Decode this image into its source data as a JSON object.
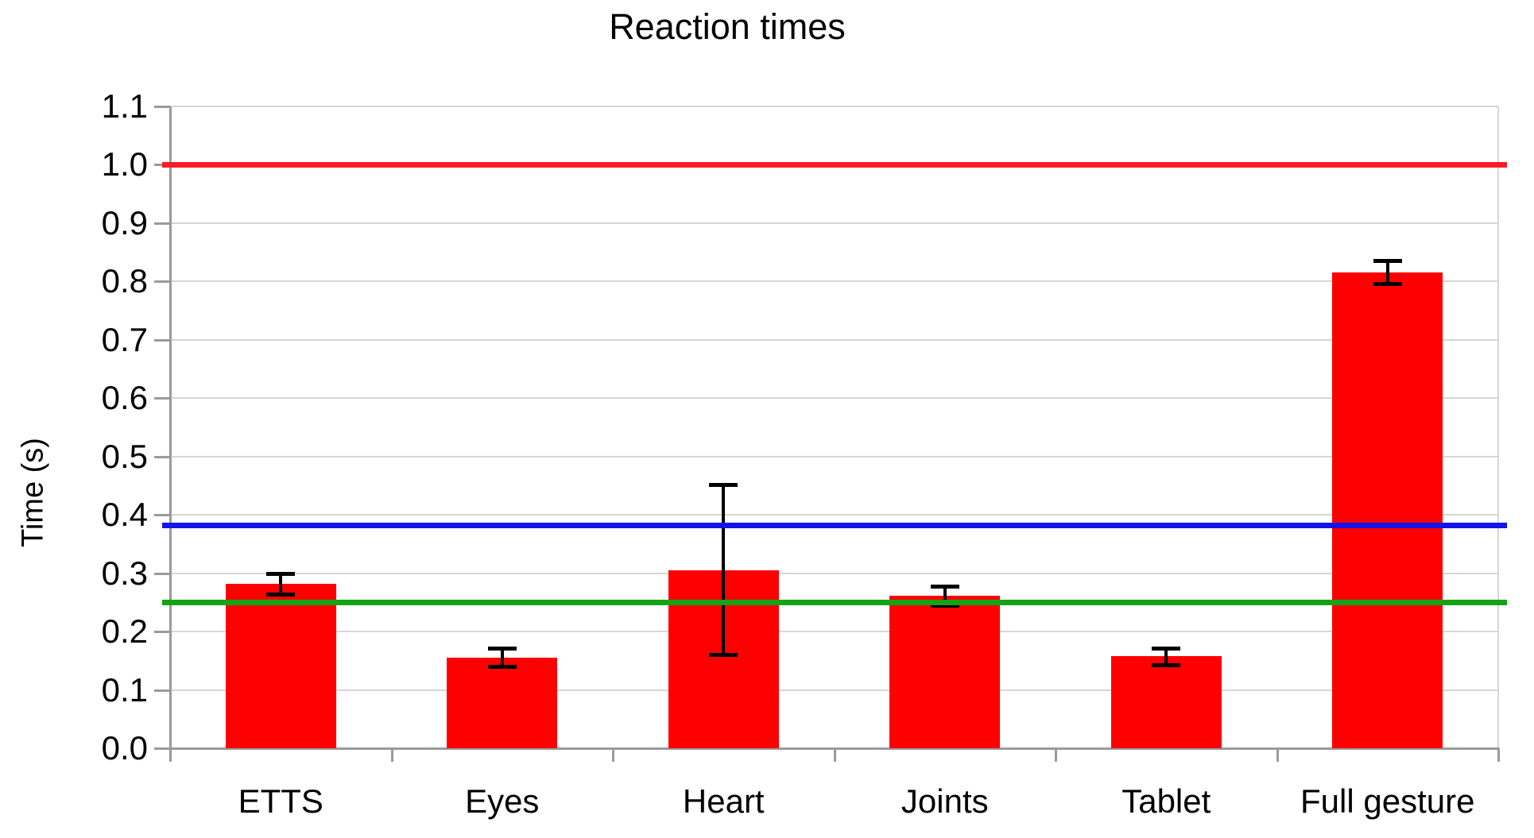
{
  "chart_data": {
    "type": "bar",
    "title": "Reaction times",
    "xlabel": "",
    "ylabel": "Time (s)",
    "ylim": [
      0.0,
      1.1
    ],
    "ytick_step": 0.1,
    "ytick_decimals": 1,
    "grid": "horizontal",
    "legend": "none",
    "bar_color": "#ff0000",
    "error_bar_color": "#000000",
    "categories": [
      "ETTS",
      "Eyes",
      "Heart",
      "Joints",
      "Tablet",
      "Full gesture"
    ],
    "values": [
      0.282,
      0.155,
      0.305,
      0.261,
      0.158,
      0.816
    ],
    "error_bars": [
      {
        "low": 0.263,
        "high": 0.3
      },
      {
        "low": 0.139,
        "high": 0.172
      },
      {
        "low": 0.159,
        "high": 0.452
      },
      {
        "low": 0.244,
        "high": 0.278
      },
      {
        "low": 0.142,
        "high": 0.172
      },
      {
        "low": 0.795,
        "high": 0.836
      }
    ],
    "reference_lines": [
      {
        "name": "red-reference-line",
        "value": 1.0,
        "color": "#fa1b28"
      },
      {
        "name": "blue-reference-line",
        "value": 0.382,
        "color": "#1414e8"
      },
      {
        "name": "green-reference-line",
        "value": 0.25,
        "color": "#14a314"
      }
    ]
  }
}
